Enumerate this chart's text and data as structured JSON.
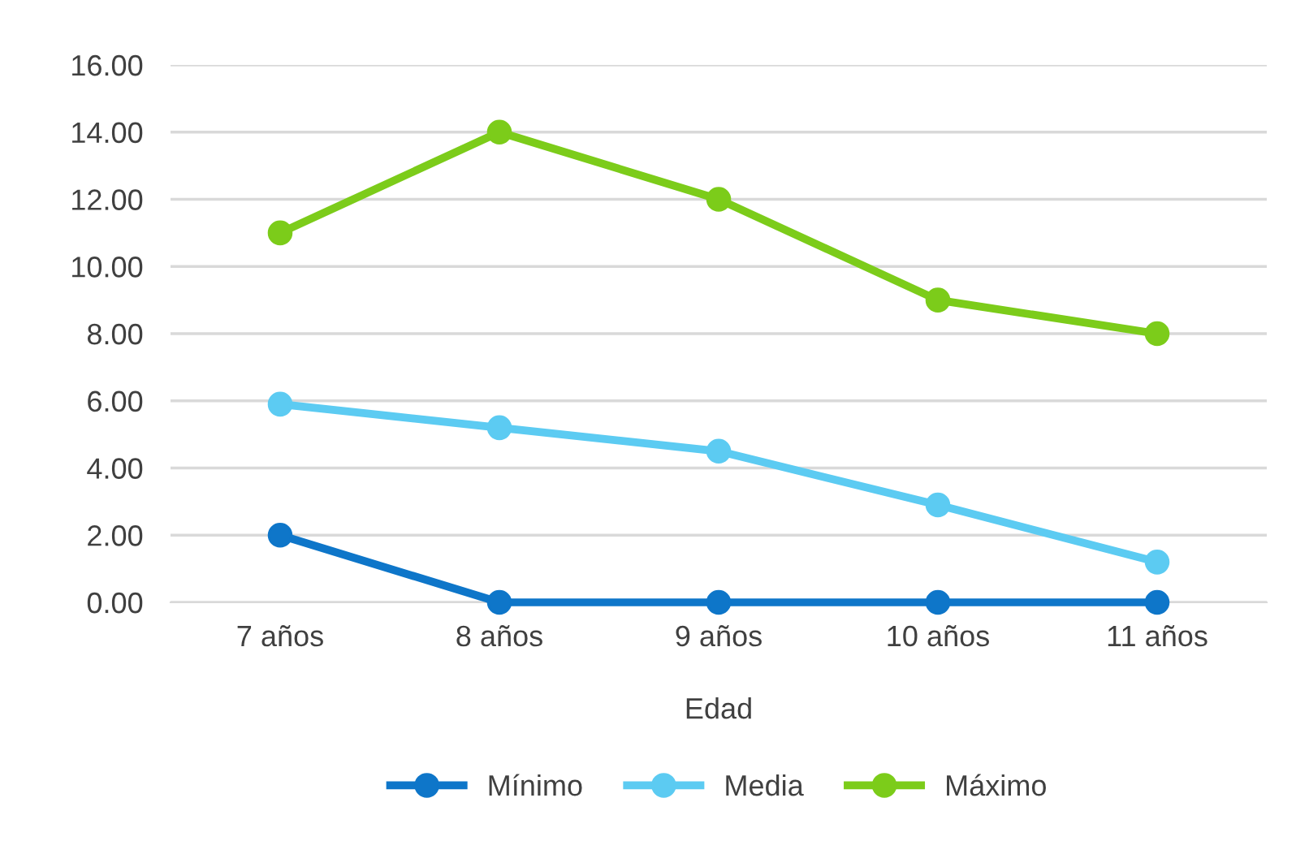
{
  "chart_data": {
    "type": "line",
    "xlabel": "Edad",
    "categories": [
      "7 años",
      "8 años",
      "9 años",
      "10 años",
      "11 años"
    ],
    "series": [
      {
        "name": "Mínimo",
        "color": "#0e76c9",
        "values": [
          2,
          0,
          0,
          0,
          0
        ]
      },
      {
        "name": "Media",
        "color": "#5ccbf2",
        "values": [
          5.9,
          5.2,
          4.5,
          2.9,
          1.2
        ]
      },
      {
        "name": "Máximo",
        "color": "#7ccc1a",
        "values": [
          11,
          14,
          12,
          9,
          8
        ]
      }
    ],
    "ylim": [
      0,
      16
    ],
    "yticks": [
      {
        "value": 0,
        "label": "0.00"
      },
      {
        "value": 2,
        "label": "2.00"
      },
      {
        "value": 4,
        "label": "4.00"
      },
      {
        "value": 6,
        "label": "6.00"
      },
      {
        "value": 8,
        "label": "8.00"
      },
      {
        "value": 10,
        "label": "10.00"
      },
      {
        "value": 12,
        "label": "12.00"
      },
      {
        "value": 14,
        "label": "14.00"
      },
      {
        "value": 16,
        "label": "16.00"
      }
    ],
    "grid": "y",
    "legend": "bottom",
    "marker": "circle",
    "line_style": "solid"
  }
}
